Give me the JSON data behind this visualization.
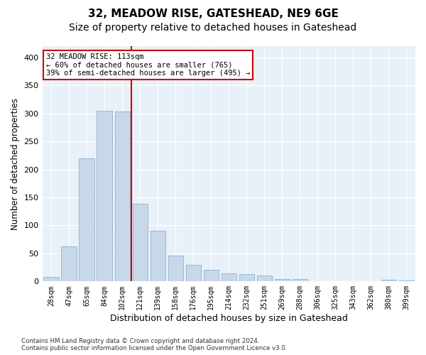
{
  "title": "32, MEADOW RISE, GATESHEAD, NE9 6GE",
  "subtitle": "Size of property relative to detached houses in Gateshead",
  "xlabel": "Distribution of detached houses by size in Gateshead",
  "ylabel": "Number of detached properties",
  "categories": [
    "28sqm",
    "47sqm",
    "65sqm",
    "84sqm",
    "102sqm",
    "121sqm",
    "139sqm",
    "158sqm",
    "176sqm",
    "195sqm",
    "214sqm",
    "232sqm",
    "251sqm",
    "269sqm",
    "288sqm",
    "306sqm",
    "325sqm",
    "343sqm",
    "362sqm",
    "380sqm",
    "399sqm"
  ],
  "values": [
    8,
    62,
    220,
    305,
    303,
    138,
    90,
    46,
    30,
    21,
    15,
    13,
    11,
    4,
    4,
    1,
    0,
    1,
    0,
    3,
    2
  ],
  "property_bin_index": 4,
  "annotation_text": "32 MEADOW RISE: 113sqm\n← 60% of detached houses are smaller (765)\n39% of semi-detached houses are larger (495) →",
  "bar_color": "#c8d8e8",
  "bar_edge_color": "#7aaac8",
  "highlight_line_color": "#cc0000",
  "background_color": "#e8f0f8",
  "annotation_box_color": "#ffffff",
  "annotation_box_edge": "#cc0000",
  "footer_line1": "Contains HM Land Registry data © Crown copyright and database right 2024.",
  "footer_line2": "Contains public sector information licensed under the Open Government Licence v3.0.",
  "ylim": [
    0,
    420
  ],
  "title_fontsize": 11,
  "subtitle_fontsize": 10,
  "xlabel_fontsize": 9,
  "ylabel_fontsize": 8.5
}
